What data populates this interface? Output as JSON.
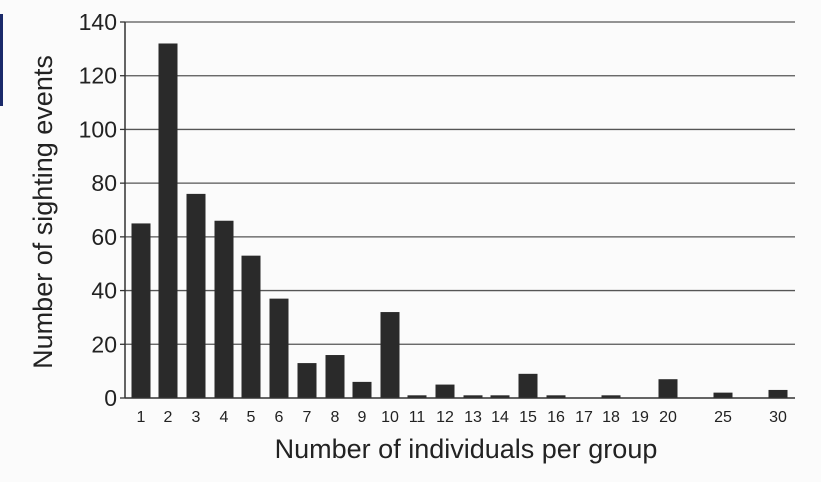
{
  "chart_data": {
    "type": "bar",
    "title": "",
    "xlabel": "Number of individuals per group",
    "ylabel": "Number of sighting events",
    "ylim": [
      0,
      140
    ],
    "yticks": [
      0,
      20,
      40,
      60,
      80,
      100,
      120,
      140
    ],
    "grid": true,
    "categories": [
      "1",
      "2",
      "3",
      "4",
      "5",
      "6",
      "7",
      "8",
      "9",
      "10",
      "11",
      "12",
      "13",
      "14",
      "15",
      "16",
      "17",
      "18",
      "19",
      "20",
      "25",
      "30"
    ],
    "values": [
      65,
      132,
      76,
      66,
      53,
      37,
      13,
      16,
      6,
      32,
      1,
      5,
      1,
      1,
      9,
      1,
      0,
      1,
      0,
      7,
      2,
      3
    ],
    "colors": {
      "bar": "#2a2a2a",
      "grid": "#555555",
      "axis": "#333333",
      "text": "#222222",
      "background": "#fbfbfb"
    }
  }
}
